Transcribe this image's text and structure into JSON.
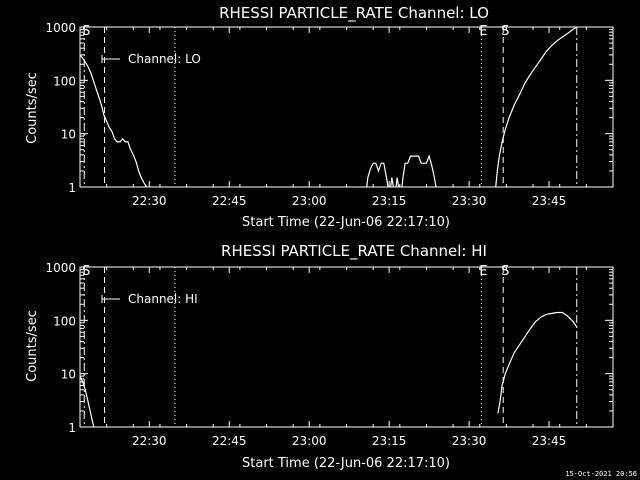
{
  "footer": {
    "timestamp": "15-Oct-2021 20:56"
  },
  "chart_data": [
    {
      "type": "line",
      "title": "RHESSI PARTICLE_RATE Channel: LO",
      "xlabel": "Start Time (22-Jun-06 22:17:10)",
      "ylabel": "Counts/sec",
      "yscale": "log",
      "ylim": [
        1,
        1000
      ],
      "x_unit": "minutes since start",
      "xlim": [
        0,
        100
      ],
      "x_ticks": [
        {
          "value": 13,
          "label": "22:30"
        },
        {
          "value": 28,
          "label": "22:45"
        },
        {
          "value": 43,
          "label": "23:00"
        },
        {
          "value": 58,
          "label": "23:15"
        },
        {
          "value": 73,
          "label": "23:30"
        },
        {
          "value": 88,
          "label": "23:45"
        }
      ],
      "y_ticks": [
        {
          "value": 1,
          "label": "1"
        },
        {
          "value": 10,
          "label": "10"
        },
        {
          "value": 100,
          "label": "100"
        },
        {
          "value": 1000,
          "label": "1000"
        }
      ],
      "legend": {
        "label": "Channel: LO",
        "placement": "top-left"
      },
      "markers": [
        {
          "x": 0.8,
          "label": "S",
          "style": "dashdot"
        },
        {
          "x": 4.6,
          "label": "",
          "style": "dashed"
        },
        {
          "x": 17.8,
          "label": "",
          "style": "dotted"
        },
        {
          "x": 75.3,
          "label": "E",
          "style": "dotted"
        },
        {
          "x": 79.4,
          "label": "S",
          "style": "dashed"
        },
        {
          "x": 93.2,
          "label": "",
          "style": "dashdot"
        }
      ],
      "series": [
        {
          "name": "Channel: LO",
          "segments": [
            [
              [
                0,
                300
              ],
              [
                0.5,
                260
              ],
              [
                1,
                220
              ],
              [
                1.5,
                180
              ],
              [
                2,
                140
              ],
              [
                2.5,
                100
              ],
              [
                3,
                70
              ],
              [
                3.5,
                50
              ],
              [
                4,
                35
              ],
              [
                4.5,
                22
              ],
              [
                5,
                17
              ],
              [
                5.5,
                13
              ],
              [
                6,
                11
              ],
              [
                6.5,
                8
              ],
              [
                7,
                7
              ],
              [
                7.5,
                7
              ],
              [
                8,
                8
              ],
              [
                8.5,
                7
              ],
              [
                9,
                7
              ],
              [
                9.5,
                5
              ],
              [
                10,
                4
              ],
              [
                10.5,
                3
              ],
              [
                11,
                2
              ],
              [
                11.5,
                1.5
              ],
              [
                12,
                1.2
              ],
              [
                12.5,
                1
              ]
            ],
            [
              [
                53.8,
                1
              ],
              [
                54,
                1.5
              ],
              [
                54.5,
                2.2
              ],
              [
                55,
                2.8
              ],
              [
                55.5,
                2.8
              ],
              [
                56,
                2
              ],
              [
                56.5,
                2.8
              ],
              [
                57,
                2.8
              ],
              [
                57.5,
                1.5
              ],
              [
                57.8,
                1
              ]
            ],
            [
              [
                58.3,
                1
              ],
              [
                58.5,
                1.5
              ],
              [
                58.8,
                1
              ]
            ],
            [
              [
                59.3,
                1
              ],
              [
                59.5,
                1.5
              ],
              [
                59.8,
                1
              ]
            ],
            [
              [
                60.4,
                1
              ],
              [
                60.6,
                1.5
              ],
              [
                61,
                2.8
              ],
              [
                61.5,
                2.8
              ],
              [
                62,
                3.8
              ],
              [
                62.5,
                3.8
              ],
              [
                63,
                3.8
              ],
              [
                63.5,
                3.8
              ],
              [
                64,
                2.8
              ],
              [
                64.5,
                2.8
              ],
              [
                65,
                2.8
              ],
              [
                65.5,
                3.8
              ],
              [
                66,
                2.5
              ],
              [
                66.5,
                1.5
              ],
              [
                66.8,
                1
              ]
            ],
            [
              [
                78,
                1
              ],
              [
                78.3,
                2
              ],
              [
                78.7,
                4
              ],
              [
                79.2,
                7
              ],
              [
                79.8,
                12
              ],
              [
                80.5,
                20
              ],
              [
                81.5,
                35
              ],
              [
                82.5,
                55
              ],
              [
                83.5,
                90
              ],
              [
                84.5,
                130
              ],
              [
                85.5,
                180
              ],
              [
                86.5,
                250
              ],
              [
                87.5,
                350
              ],
              [
                88.5,
                450
              ],
              [
                89.5,
                550
              ],
              [
                90.5,
                650
              ],
              [
                91.5,
                760
              ],
              [
                92.5,
                900
              ],
              [
                93.2,
                1000
              ]
            ]
          ]
        }
      ]
    },
    {
      "type": "line",
      "title": "RHESSI PARTICLE_RATE Channel: HI",
      "xlabel": "Start Time (22-Jun-06 22:17:10)",
      "ylabel": "Counts/sec",
      "yscale": "log",
      "ylim": [
        1,
        1000
      ],
      "x_unit": "minutes since start",
      "xlim": [
        0,
        100
      ],
      "x_ticks": [
        {
          "value": 13,
          "label": "22:30"
        },
        {
          "value": 28,
          "label": "22:45"
        },
        {
          "value": 43,
          "label": "23:00"
        },
        {
          "value": 58,
          "label": "23:15"
        },
        {
          "value": 73,
          "label": "23:30"
        },
        {
          "value": 88,
          "label": "23:45"
        }
      ],
      "y_ticks": [
        {
          "value": 1,
          "label": "1"
        },
        {
          "value": 10,
          "label": "10"
        },
        {
          "value": 100,
          "label": "100"
        },
        {
          "value": 1000,
          "label": "1000"
        }
      ],
      "legend": {
        "label": "Channel: HI",
        "placement": "top-left"
      },
      "markers": [
        {
          "x": 0.8,
          "label": "S",
          "style": "dashdot"
        },
        {
          "x": 4.6,
          "label": "",
          "style": "dashed"
        },
        {
          "x": 17.8,
          "label": "",
          "style": "dotted"
        },
        {
          "x": 75.3,
          "label": "E",
          "style": "dotted"
        },
        {
          "x": 79.4,
          "label": "S",
          "style": "dashed"
        },
        {
          "x": 93.2,
          "label": "",
          "style": "dashdot"
        }
      ],
      "series": [
        {
          "name": "Channel: HI",
          "segments": [
            [
              [
                0,
                9
              ],
              [
                0.5,
                7
              ],
              [
                1,
                5
              ],
              [
                1.5,
                3
              ],
              [
                2,
                1.8
              ],
              [
                2.4,
                1.2
              ],
              [
                2.6,
                1
              ]
            ],
            [
              [
                78.4,
                1.8
              ],
              [
                78.8,
                3
              ],
              [
                79.2,
                6
              ],
              [
                79.8,
                10
              ],
              [
                80.5,
                15
              ],
              [
                81.5,
                25
              ],
              [
                82.5,
                35
              ],
              [
                83.5,
                50
              ],
              [
                84.5,
                70
              ],
              [
                85.5,
                95
              ],
              [
                86.5,
                115
              ],
              [
                87.5,
                130
              ],
              [
                88.5,
                135
              ],
              [
                89.5,
                140
              ],
              [
                90.5,
                140
              ],
              [
                91.5,
                120
              ],
              [
                92.5,
                95
              ],
              [
                93.2,
                75
              ]
            ]
          ]
        }
      ]
    }
  ]
}
